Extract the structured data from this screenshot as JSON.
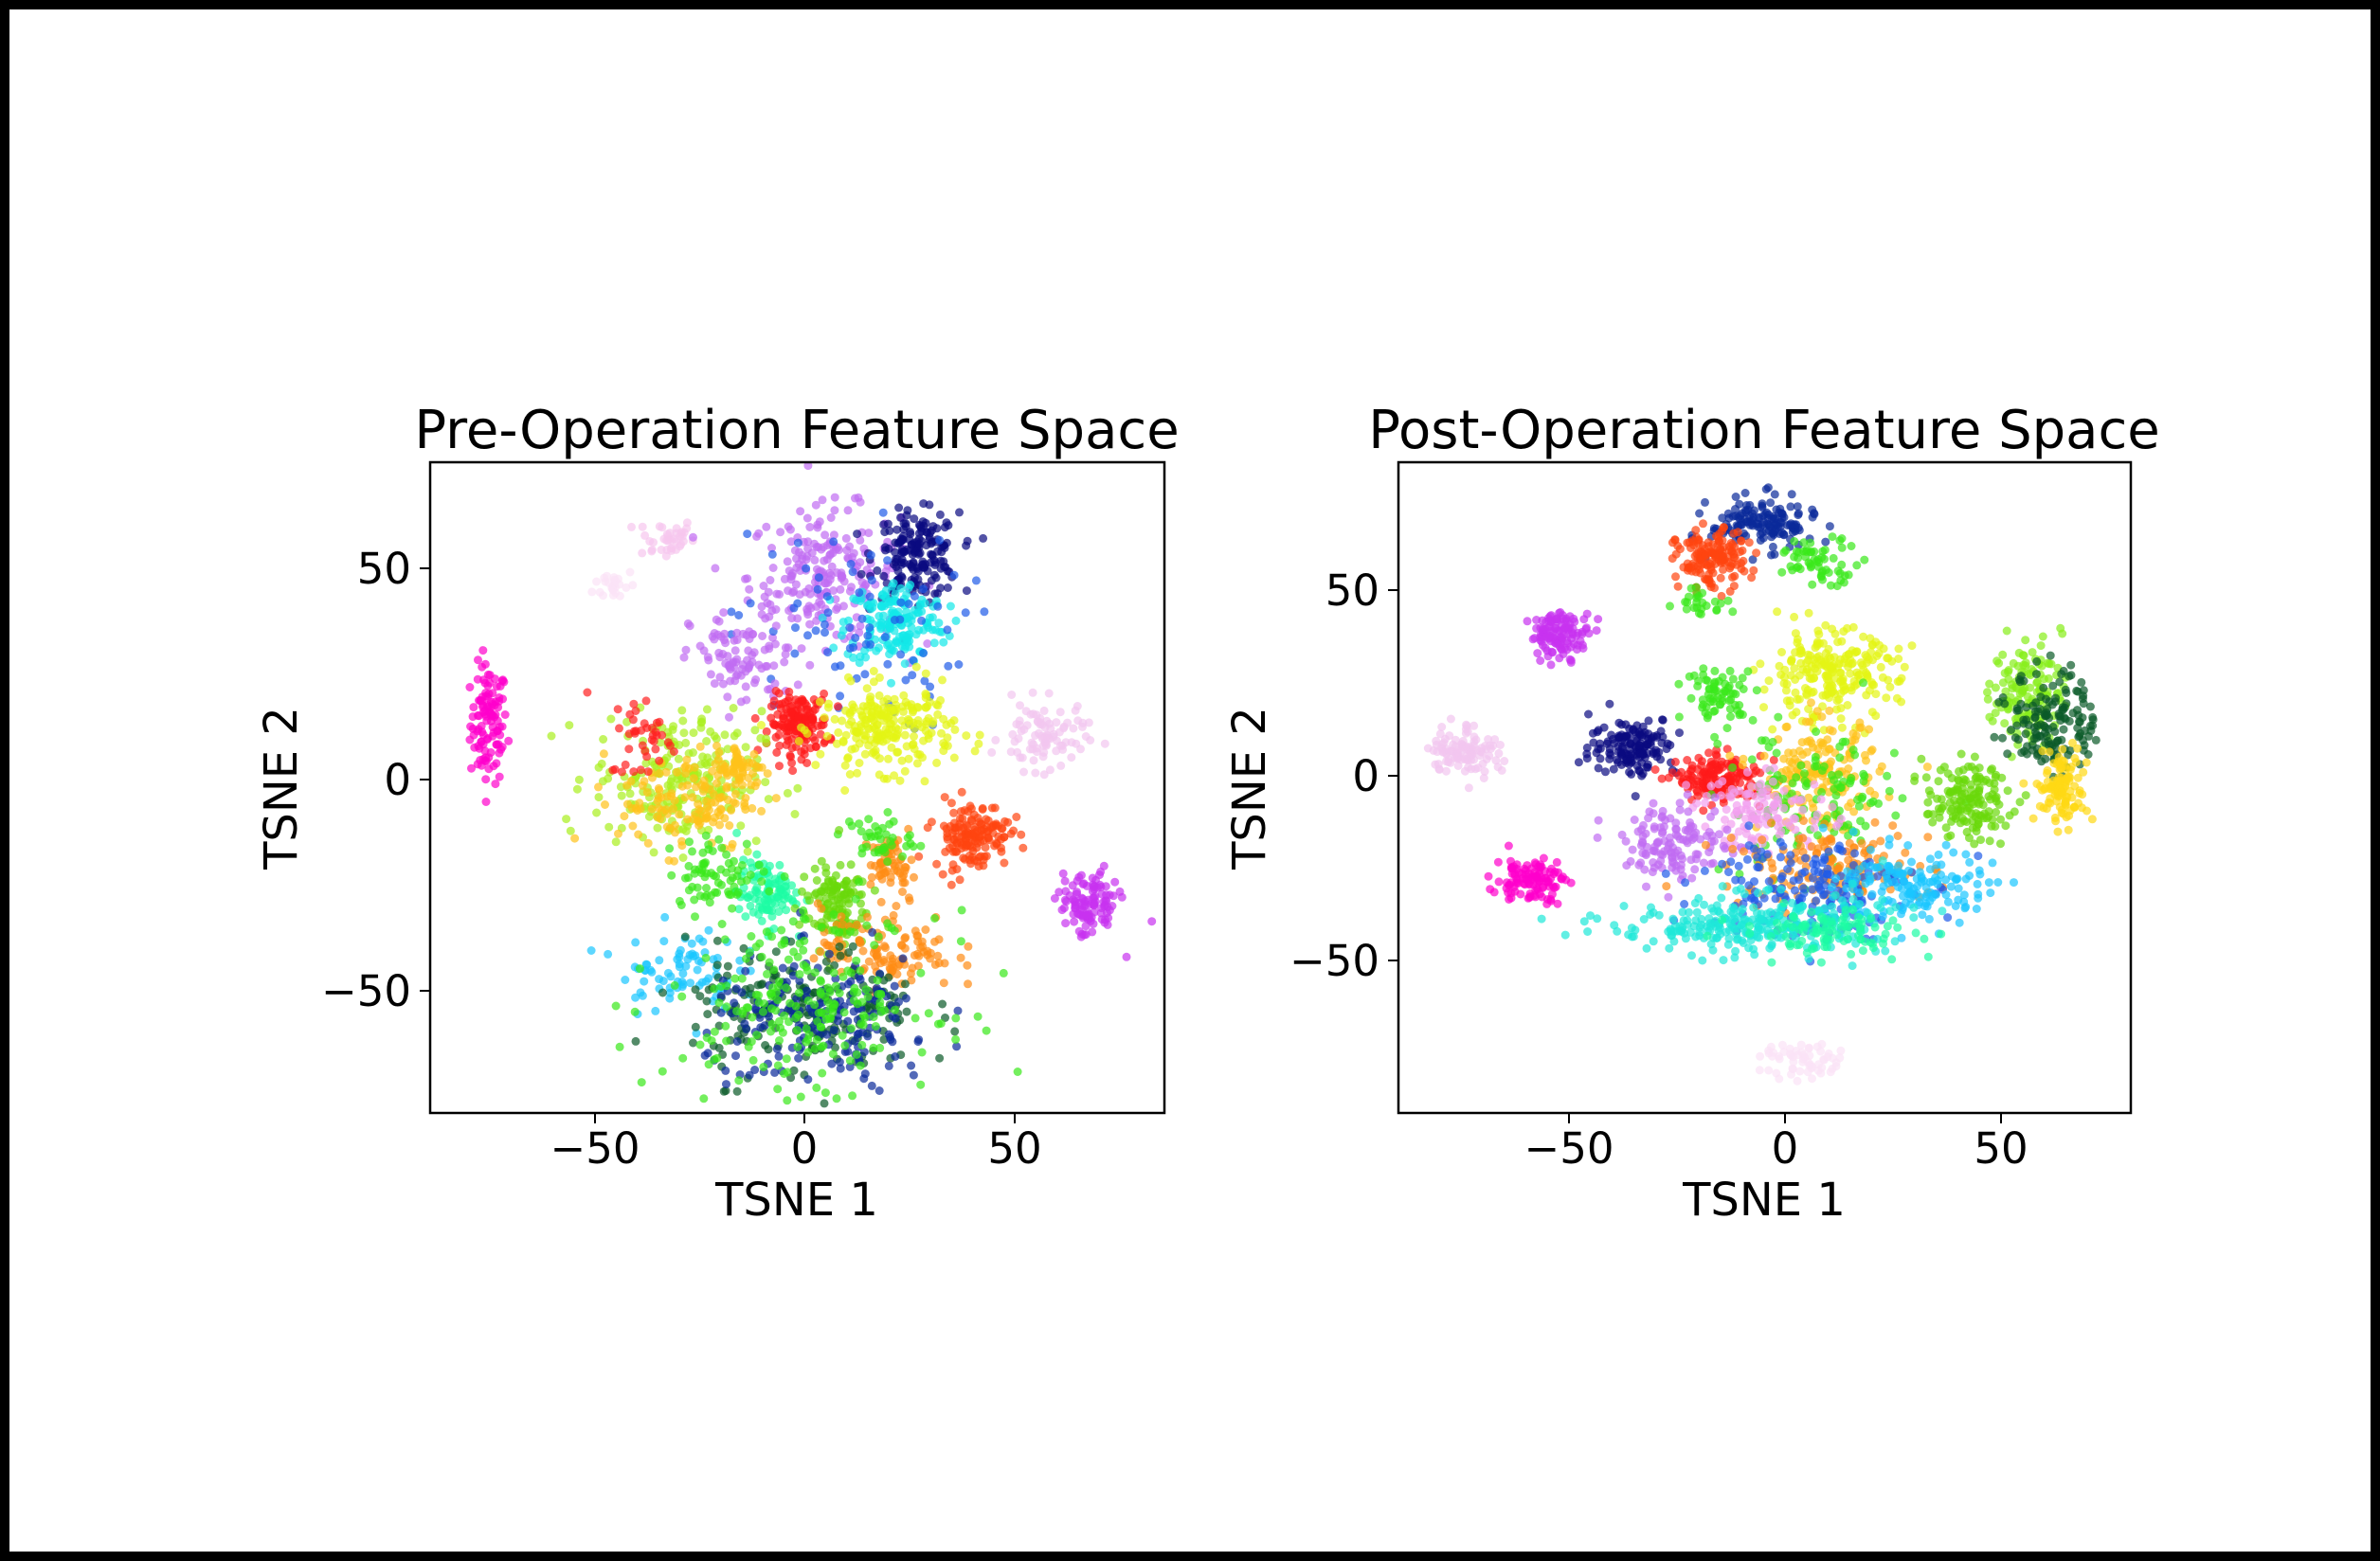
{
  "figure": {
    "background": "#ffffff",
    "border_color": "#000000"
  },
  "chart_data": [
    {
      "type": "scatter",
      "title": "Pre-Operation Feature Space",
      "xlabel": "TSNE 1",
      "ylabel": "TSNE 2",
      "xlim": [
        -89,
        86
      ],
      "ylim": [
        -79,
        75
      ],
      "xticks": [
        -50,
        0,
        50
      ],
      "xtick_labels": [
        "−50",
        "0",
        "50"
      ],
      "yticks": [
        -50,
        0,
        50
      ],
      "ytick_labels": [
        "−50",
        "0",
        "50"
      ],
      "grid": false,
      "legend": null,
      "point_alpha": 0.7,
      "clusters": [
        {
          "color": "#ff00cc",
          "cx": -75,
          "cy": 13,
          "sx": 2.2,
          "sy": 7,
          "n": 110
        },
        {
          "color": "#f7c6ee",
          "cx": -33,
          "cy": 57,
          "sx": 3.5,
          "sy": 2.5,
          "n": 40
        },
        {
          "color": "#fbe3f6",
          "cx": -45,
          "cy": 46,
          "sx": 2.5,
          "sy": 2,
          "n": 25
        },
        {
          "color": "#c06cf2",
          "cx": 5,
          "cy": 48,
          "sx": 9,
          "sy": 8,
          "n": 220
        },
        {
          "color": "#0a0a80",
          "cx": 27,
          "cy": 53,
          "sx": 5,
          "sy": 5,
          "n": 180
        },
        {
          "color": "#12e8e8",
          "cx": 22,
          "cy": 37,
          "sx": 6,
          "sy": 5,
          "n": 170
        },
        {
          "color": "#1f5be8",
          "cx": 10,
          "cy": 35,
          "sx": 14,
          "sy": 12,
          "n": 80
        },
        {
          "color": "#c06cf2",
          "cx": -15,
          "cy": 28,
          "sx": 6,
          "sy": 6,
          "n": 90
        },
        {
          "color": "#ff1a1a",
          "cx": -1,
          "cy": 13,
          "sx": 3.5,
          "sy": 3.5,
          "n": 160
        },
        {
          "color": "#e4f514",
          "cx": 20,
          "cy": 12,
          "sx": 8,
          "sy": 5,
          "n": 230
        },
        {
          "color": "#f2c6f0",
          "cx": 57,
          "cy": 10,
          "sx": 5,
          "sy": 4,
          "n": 90
        },
        {
          "color": "#aaf01e",
          "cx": -30,
          "cy": 0,
          "sx": 10,
          "sy": 8,
          "n": 220
        },
        {
          "color": "#ffc21a",
          "cx": -28,
          "cy": -5,
          "sx": 8,
          "sy": 6,
          "n": 120
        },
        {
          "color": "#ffc21a",
          "cx": -15,
          "cy": 2,
          "sx": 3,
          "sy": 3,
          "n": 60
        },
        {
          "color": "#ff2020",
          "cx": -38,
          "cy": 10,
          "sx": 4,
          "sy": 5,
          "n": 40
        },
        {
          "color": "#ff4510",
          "cx": 40,
          "cy": -13,
          "sx": 4.5,
          "sy": 4,
          "n": 150
        },
        {
          "color": "#ff8c14",
          "cx": 21,
          "cy": -20,
          "sx": 2.5,
          "sy": 3,
          "n": 60
        },
        {
          "color": "#39e819",
          "cx": 18,
          "cy": -14,
          "sx": 4,
          "sy": 3,
          "n": 40
        },
        {
          "color": "#1dfca4",
          "cx": -9,
          "cy": -27,
          "sx": 3.5,
          "sy": 4,
          "n": 100
        },
        {
          "color": "#6ad80a",
          "cx": 7,
          "cy": -30,
          "sx": 4,
          "sy": 5,
          "n": 130
        },
        {
          "color": "#ff8c14",
          "cx": 20,
          "cy": -40,
          "sx": 8,
          "sy": 5,
          "n": 120
        },
        {
          "color": "#39e819",
          "cx": -20,
          "cy": -22,
          "sx": 6,
          "sy": 4,
          "n": 70
        },
        {
          "color": "#19c6ff",
          "cx": -30,
          "cy": -45,
          "sx": 7,
          "sy": 5,
          "n": 80
        },
        {
          "color": "#0a5a28",
          "cx": 0,
          "cy": -55,
          "sx": 14,
          "sy": 8,
          "n": 200
        },
        {
          "color": "#0a2a9a",
          "cx": 5,
          "cy": -58,
          "sx": 14,
          "sy": 8,
          "n": 180
        },
        {
          "color": "#39e819",
          "cx": 0,
          "cy": -52,
          "sx": 16,
          "sy": 10,
          "n": 220
        },
        {
          "color": "#c832f0",
          "cx": 68,
          "cy": -30,
          "sx": 3.5,
          "sy": 4,
          "n": 110
        }
      ]
    },
    {
      "type": "scatter",
      "title": "Post-Operation Feature Space",
      "xlabel": "TSNE 1",
      "ylabel": "TSNE 2",
      "xlim": [
        -89.5,
        80
      ],
      "ylim": [
        -90.8,
        84.4
      ],
      "xticks": [
        -50,
        0,
        50
      ],
      "xtick_labels": [
        "−50",
        "0",
        "50"
      ],
      "yticks": [
        -50,
        0,
        50
      ],
      "ytick_labels": [
        "−50",
        "0",
        "50"
      ],
      "grid": false,
      "legend": null,
      "point_alpha": 0.7,
      "clusters": [
        {
          "color": "#0a2a9a",
          "cx": -5,
          "cy": 68,
          "sx": 6,
          "sy": 3.5,
          "n": 150
        },
        {
          "color": "#ff4510",
          "cx": -17,
          "cy": 58,
          "sx": 4,
          "sy": 4,
          "n": 150
        },
        {
          "color": "#39e819",
          "cx": 8,
          "cy": 58,
          "sx": 5,
          "sy": 3,
          "n": 60
        },
        {
          "color": "#39e819",
          "cx": -19,
          "cy": 47,
          "sx": 3,
          "sy": 2,
          "n": 25
        },
        {
          "color": "#c832f0",
          "cx": -52,
          "cy": 38,
          "sx": 3.5,
          "sy": 3,
          "n": 120
        },
        {
          "color": "#f2c6f0",
          "cx": -74,
          "cy": 7,
          "sx": 4,
          "sy": 3.5,
          "n": 110
        },
        {
          "color": "#ff00cc",
          "cx": -59,
          "cy": -28,
          "sx": 4,
          "sy": 3,
          "n": 110
        },
        {
          "color": "#e4f514",
          "cx": 10,
          "cy": 27,
          "sx": 8,
          "sy": 6,
          "n": 230
        },
        {
          "color": "#39e819",
          "cx": -15,
          "cy": 22,
          "sx": 4,
          "sy": 3.5,
          "n": 70
        },
        {
          "color": "#0a0a80",
          "cx": -35,
          "cy": 8,
          "sx": 5,
          "sy": 4,
          "n": 150
        },
        {
          "color": "#ff1a1a",
          "cx": -15,
          "cy": -1,
          "sx": 5,
          "sy": 3,
          "n": 170
        },
        {
          "color": "#ffc21a",
          "cx": 8,
          "cy": 0,
          "sx": 7,
          "sy": 7,
          "n": 170
        },
        {
          "color": "#39e819",
          "cx": 6,
          "cy": -8,
          "sx": 10,
          "sy": 10,
          "n": 130
        },
        {
          "color": "#f2a0f0",
          "cx": -5,
          "cy": -10,
          "sx": 8,
          "sy": 5,
          "n": 120
        },
        {
          "color": "#c06cf2",
          "cx": -25,
          "cy": -18,
          "sx": 6,
          "sy": 5,
          "n": 130
        },
        {
          "color": "#ff8c14",
          "cx": 10,
          "cy": -25,
          "sx": 12,
          "sy": 5,
          "n": 150
        },
        {
          "color": "#1f5be8",
          "cx": 5,
          "cy": -30,
          "sx": 12,
          "sy": 7,
          "n": 180
        },
        {
          "color": "#19c6ff",
          "cx": 30,
          "cy": -30,
          "sx": 9,
          "sy": 5,
          "n": 150
        },
        {
          "color": "#1ee8d8",
          "cx": -8,
          "cy": -40,
          "sx": 16,
          "sy": 4,
          "n": 260
        },
        {
          "color": "#1dfca4",
          "cx": 10,
          "cy": -42,
          "sx": 10,
          "sy": 3,
          "n": 100
        },
        {
          "color": "#6ad80a",
          "cx": 42,
          "cy": -7,
          "sx": 5,
          "sy": 5,
          "n": 150
        },
        {
          "color": "#88ee1a",
          "cx": 56,
          "cy": 23,
          "sx": 4,
          "sy": 7,
          "n": 130
        },
        {
          "color": "#0a5a28",
          "cx": 62,
          "cy": 15,
          "sx": 5,
          "sy": 7,
          "n": 150
        },
        {
          "color": "#ffd814",
          "cx": 64,
          "cy": -3,
          "sx": 3,
          "sy": 5,
          "n": 110
        },
        {
          "color": "#fbe3f6",
          "cx": 5,
          "cy": -77,
          "sx": 5,
          "sy": 2.5,
          "n": 60
        }
      ]
    }
  ]
}
